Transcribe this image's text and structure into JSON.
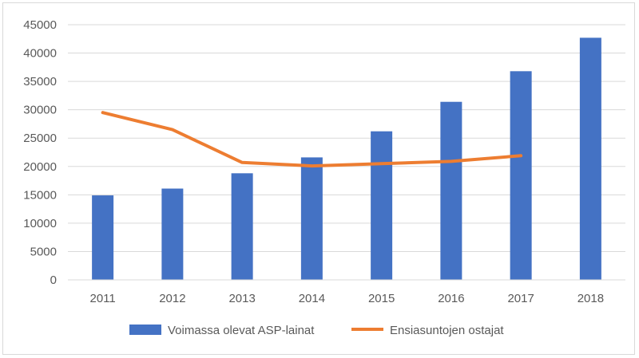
{
  "chart_data": {
    "type": "bar",
    "categories": [
      "2011",
      "2012",
      "2013",
      "2014",
      "2015",
      "2016",
      "2017",
      "2018"
    ],
    "series": [
      {
        "name": "Voimassa olevat ASP-lainat",
        "type": "bar",
        "color": "#4472C4",
        "values": [
          14900,
          16100,
          18800,
          21600,
          26200,
          31400,
          36800,
          42700
        ]
      },
      {
        "name": "Ensiasuntojen ostajat",
        "type": "line",
        "color": "#ED7D31",
        "values": [
          29500,
          26500,
          20700,
          20100,
          20500,
          20900,
          21900,
          null
        ]
      }
    ],
    "ylim": [
      0,
      45000
    ],
    "yticks": [
      "0",
      "5000",
      "10000",
      "15000",
      "20000",
      "25000",
      "30000",
      "35000",
      "40000",
      "45000"
    ],
    "grid": true,
    "legend_position": "bottom"
  }
}
